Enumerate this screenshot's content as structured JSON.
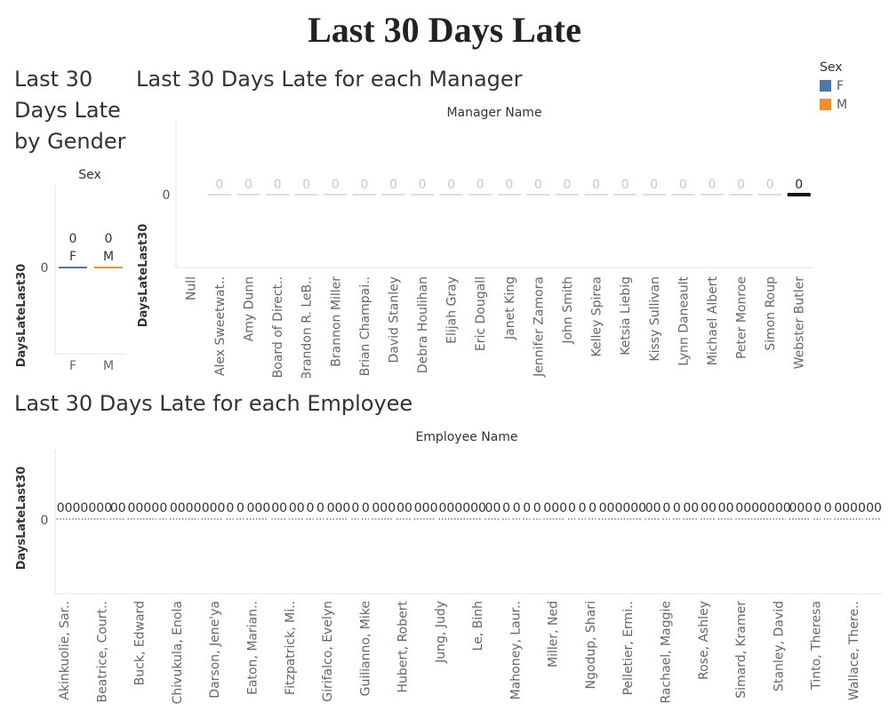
{
  "dashboard_title": "Last 30 Days Late",
  "worksheets": {
    "gender_title": "Last 30 Days Late by Gender",
    "manager_title": "Last 30 Days Late for each Manager",
    "employee_title": "Last 30 Days Late for each Employee"
  },
  "legend": {
    "title": "Sex",
    "items": [
      {
        "label": "F",
        "color": "#4e79a7"
      },
      {
        "label": "M",
        "color": "#f28e2b"
      }
    ]
  },
  "chart_data": [
    {
      "type": "bar",
      "title": "Last 30 Days Late by Gender",
      "header": "Sex",
      "ylabel": "DaysLateLast30",
      "yticks": [
        "0"
      ],
      "categories": [
        "F",
        "M"
      ],
      "values": [
        0,
        0
      ],
      "colors": [
        "#4e79a7",
        "#f28e2b"
      ],
      "mark_labels": [
        "0\nF",
        "0\nM"
      ]
    },
    {
      "type": "bar",
      "title": "Last 30 Days Late for each Manager",
      "header": "Manager Name",
      "ylabel": "DaysLateLast30",
      "yticks": [
        "0"
      ],
      "categories": [
        "Null",
        "Alex Sweetwat..",
        "Amy Dunn",
        "Board of Direct..",
        "Brandon R. LeB..",
        "Brannon Miller",
        "Brian Champai..",
        "David Stanley",
        "Debra Houlihan",
        "Elijah Gray",
        "Eric Dougall",
        "Janet King",
        "Jennifer Zamora",
        "John Smith",
        "Kelley Spirea",
        "Ketsia Liebig",
        "Kissy Sullivan",
        "Lynn Daneault",
        "Michael Albert",
        "Peter Monroe",
        "Simon Roup",
        "Webster Butler"
      ],
      "values": [
        null,
        0,
        0,
        0,
        0,
        0,
        0,
        0,
        0,
        0,
        0,
        0,
        0,
        0,
        0,
        0,
        0,
        0,
        0,
        0,
        0,
        0
      ],
      "highlighted": "Webster Butler"
    },
    {
      "type": "bar",
      "title": "Last 30 Days Late for each Employee",
      "header": "Employee Name",
      "ylabel": "DaysLateLast30",
      "yticks": [
        "0"
      ],
      "categories": [
        "Akinkuolie, Sar..",
        "Beatrice, Court..",
        "Buck, Edward",
        "Chivukula, Enola",
        "Darson, Jene'ya",
        "Eaton, Marian..",
        "Fitzpatrick, Mi..",
        "Girifalco, Evelyn",
        "Guilianno, Mike",
        "Hubert, Robert",
        "Jung, Judy",
        "Le, Binh",
        "Mahoney, Laur..",
        "Miller, Ned",
        "Ngodup, Shari",
        "Pelletier, Ermi..",
        "Rachael, Maggie",
        "Rose, Ashley",
        "Simard, Kramer",
        "Stanley, David",
        "Tinto, Theresa",
        "Wallace, There.."
      ],
      "value_label_groups": [
        "0000000",
        "00",
        "0000",
        "0",
        "0000",
        "000",
        "0",
        "0",
        "000",
        "00",
        "00",
        "0",
        "0",
        "000",
        "0",
        "0",
        "000",
        "00",
        "000",
        "000000",
        "00",
        "0",
        "0",
        "0",
        "0",
        "000",
        "0",
        "0",
        "0",
        "000000",
        "00",
        "0",
        "0",
        "00",
        "00",
        "00",
        "0000000",
        "000",
        "0",
        "0",
        "0000",
        "00"
      ]
    }
  ]
}
